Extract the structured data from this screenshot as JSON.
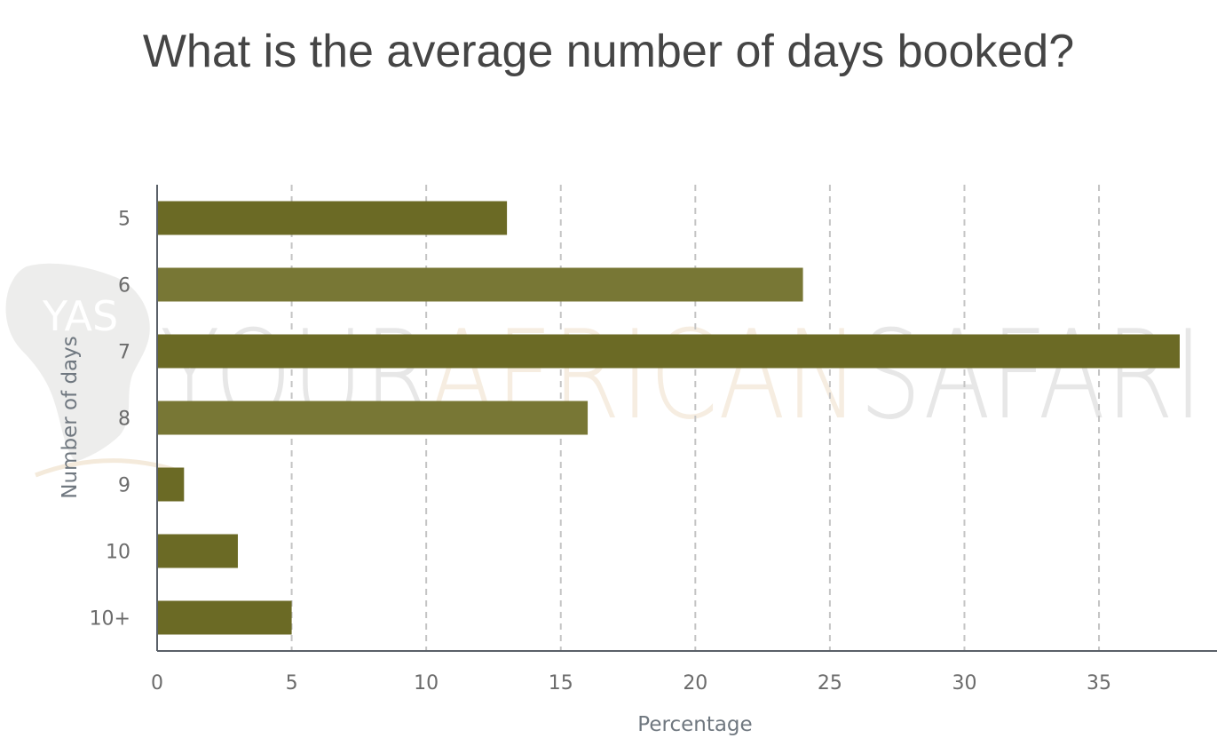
{
  "chart_data": {
    "type": "bar",
    "orientation": "horizontal",
    "title": "What is the average number of days booked?",
    "xlabel": "Percentage",
    "ylabel": "Number of days",
    "categories": [
      "5",
      "6",
      "7",
      "8",
      "9",
      "10",
      "10+"
    ],
    "values": [
      13,
      24,
      38,
      16,
      1,
      3,
      5
    ],
    "xlim": [
      0,
      39
    ],
    "xticks": [
      0,
      5,
      10,
      15,
      20,
      25,
      30,
      35
    ],
    "grid": "vertical dashed",
    "bar_colors": [
      "#6b6a25",
      "#787735",
      "#6b6a25",
      "#787735",
      "#6b6a25",
      "#6b6a25",
      "#6b6a25"
    ]
  },
  "watermark": {
    "logo_initials": "YAS",
    "words": [
      "YOUR",
      "AFRICAN",
      "SAFARI"
    ],
    "colors": [
      "#e5e5e5",
      "#f6ecde",
      "#e5e5e5"
    ]
  }
}
